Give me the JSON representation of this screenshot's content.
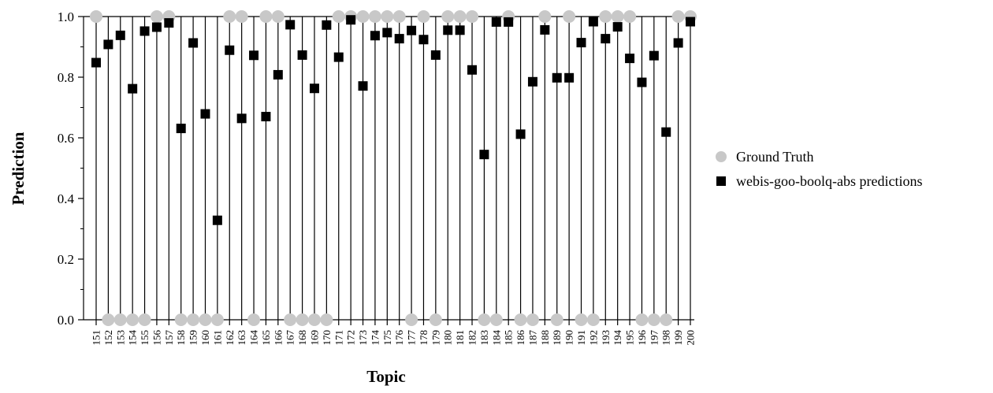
{
  "chart_data": {
    "type": "scatter",
    "title": "",
    "xlabel": "Topic",
    "ylabel": "Prediction",
    "ylim": [
      0.0,
      1.0
    ],
    "yticks": [
      "0.0",
      "0.2",
      "0.4",
      "0.6",
      "0.8",
      "1.0"
    ],
    "legend_position": "right",
    "grid": "vertical lines at each topic",
    "categories": [
      "151",
      "152",
      "153",
      "154",
      "155",
      "156",
      "157",
      "158",
      "159",
      "160",
      "161",
      "162",
      "163",
      "164",
      "165",
      "166",
      "167",
      "168",
      "169",
      "170",
      "171",
      "172",
      "173",
      "174",
      "175",
      "176",
      "177",
      "178",
      "179",
      "180",
      "181",
      "182",
      "183",
      "184",
      "185",
      "186",
      "187",
      "188",
      "189",
      "190",
      "191",
      "192",
      "193",
      "194",
      "195",
      "196",
      "197",
      "198",
      "199",
      "200"
    ],
    "series": [
      {
        "name": "Ground Truth",
        "marker": "circle",
        "color": "#c8c8c8",
        "values": [
          1,
          0,
          0,
          0,
          0,
          1,
          1,
          0,
          0,
          0,
          0,
          1,
          1,
          0,
          1,
          1,
          0,
          0,
          0,
          0,
          1,
          1,
          1,
          1,
          1,
          1,
          0,
          1,
          0,
          1,
          1,
          1,
          0,
          0,
          1,
          0,
          0,
          1,
          0,
          1,
          0,
          0,
          1,
          1,
          1,
          0,
          0,
          0,
          1,
          1
        ]
      },
      {
        "name": "webis-goo-boolq-abs predictions",
        "marker": "square",
        "color": "#000000",
        "values": [
          0.848,
          0.908,
          0.938,
          0.762,
          0.952,
          0.965,
          0.979,
          0.631,
          0.913,
          0.679,
          0.328,
          0.889,
          0.664,
          0.872,
          0.67,
          0.808,
          0.973,
          0.873,
          0.763,
          0.972,
          0.866,
          0.989,
          0.771,
          0.937,
          0.947,
          0.927,
          0.954,
          0.924,
          0.873,
          0.955,
          0.955,
          0.824,
          0.545,
          0.982,
          0.982,
          0.612,
          0.785,
          0.956,
          0.798,
          0.798,
          0.914,
          0.983,
          0.927,
          0.966,
          0.862,
          0.783,
          0.871,
          0.619,
          0.913,
          0.983
        ]
      }
    ]
  }
}
